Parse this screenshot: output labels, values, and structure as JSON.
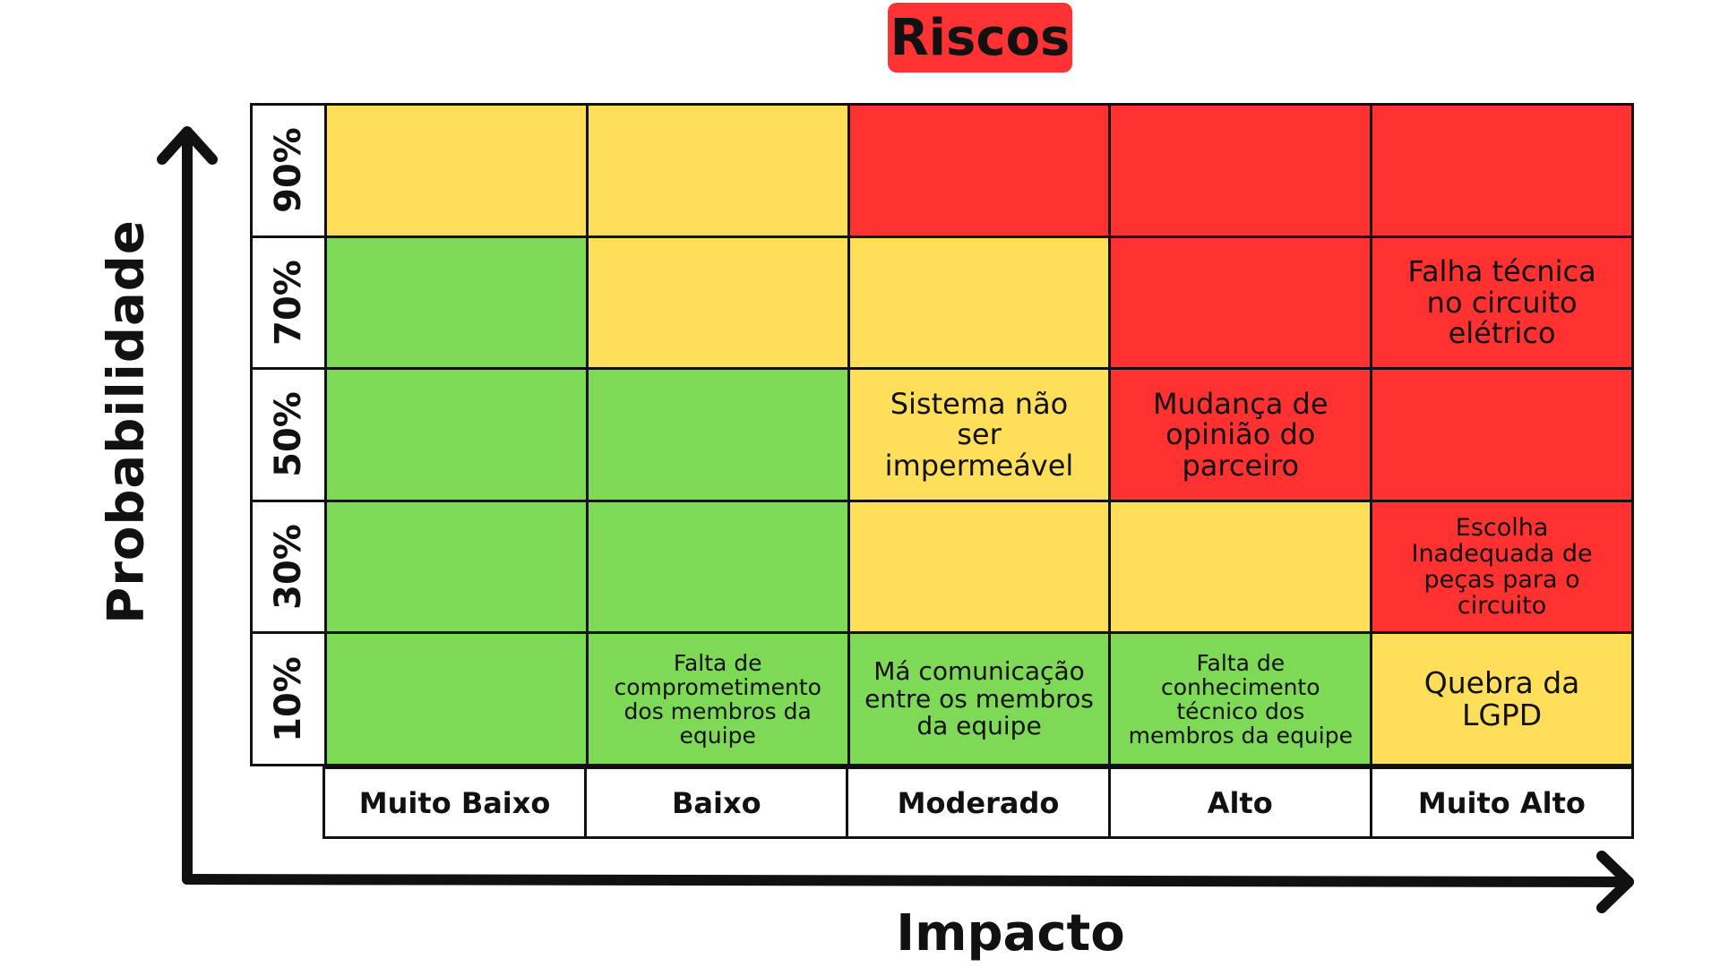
{
  "title": "Riscos",
  "y_axis_label": "Probabilidade",
  "x_axis_label": "Impacto",
  "colors": {
    "green": "#7ed957",
    "yellow": "#ffde59",
    "red": "#ff3131",
    "title_bg": "#ff3333"
  },
  "probabilities": [
    "90%",
    "70%",
    "50%",
    "30%",
    "10%"
  ],
  "impacts": [
    "Muito Baixo",
    "Baixo",
    "Moderado",
    "Alto",
    "Muito Alto"
  ],
  "matrix": [
    [
      {
        "color": "yellow",
        "text": ""
      },
      {
        "color": "yellow",
        "text": ""
      },
      {
        "color": "red",
        "text": ""
      },
      {
        "color": "red",
        "text": ""
      },
      {
        "color": "red",
        "text": ""
      }
    ],
    [
      {
        "color": "green",
        "text": ""
      },
      {
        "color": "yellow",
        "text": ""
      },
      {
        "color": "yellow",
        "text": ""
      },
      {
        "color": "red",
        "text": ""
      },
      {
        "color": "red",
        "text": "Falha técnica\nno circuito\nelétrico"
      }
    ],
    [
      {
        "color": "green",
        "text": ""
      },
      {
        "color": "green",
        "text": ""
      },
      {
        "color": "yellow",
        "text": "Sistema não\nser\nimpermeável"
      },
      {
        "color": "red",
        "text": "Mudança de\nopinião do\nparceiro"
      },
      {
        "color": "red",
        "text": ""
      }
    ],
    [
      {
        "color": "green",
        "text": ""
      },
      {
        "color": "green",
        "text": ""
      },
      {
        "color": "yellow",
        "text": ""
      },
      {
        "color": "yellow",
        "text": ""
      },
      {
        "color": "red",
        "text": "Escolha\nInadequada de\npeças para o\ncircuito"
      }
    ],
    [
      {
        "color": "green",
        "text": ""
      },
      {
        "color": "green",
        "text": "Falta de\ncomprometimento\ndos membros da\nequipe"
      },
      {
        "color": "green",
        "text": "Má comunicação\nentre os membros\nda equipe"
      },
      {
        "color": "green",
        "text": "Falta de\nconhecimento\ntécnico dos\nmembros da equipe"
      },
      {
        "color": "yellow",
        "text": "Quebra da\nLGPD"
      }
    ]
  ]
}
